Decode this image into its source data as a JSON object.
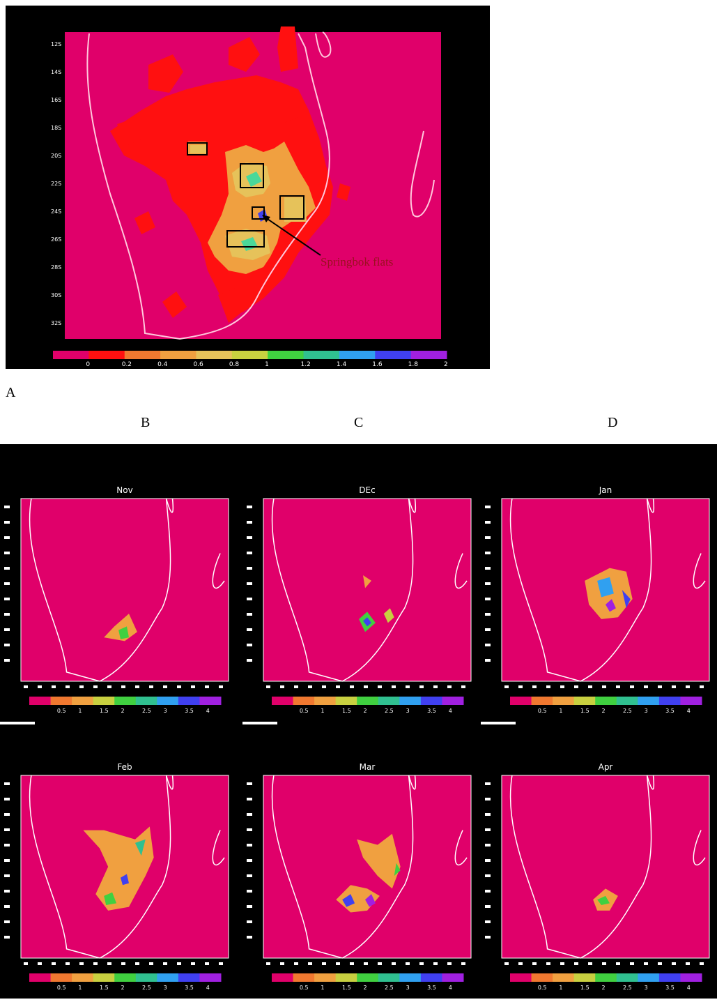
{
  "figure_labels": {
    "a": "A",
    "b": "B",
    "c": "C",
    "d": "D"
  },
  "panel_a": {
    "annotation": "Springbok flats",
    "colorbar_labels": [
      "0",
      "0.2",
      "0.4",
      "0.6",
      "0.8",
      "1",
      "1.2",
      "1.4",
      "1.6",
      "1.8",
      "2"
    ],
    "colors": {
      "background": "#e0006a",
      "level_1": "#ff1010",
      "level_2": "#f0a040",
      "level_3": "#e6c25a",
      "level_4": "#4ad89a",
      "box": "#000000",
      "coast": "#ffc8dc",
      "annotation": "#9b1020"
    }
  },
  "monthly_panels": [
    {
      "month": "Nov",
      "colorbar_labels": [
        "0.5",
        "1",
        "1.5",
        "2",
        "2.5",
        "3",
        "3.5",
        "4"
      ]
    },
    {
      "month": "DEc",
      "colorbar_labels": [
        "0.5",
        "1",
        "1.5",
        "2",
        "2.5",
        "3",
        "3.5",
        "4"
      ]
    },
    {
      "month": "Jan",
      "colorbar_labels": [
        "0.5",
        "1",
        "1.5",
        "2",
        "2.5",
        "3",
        "3.5",
        "4"
      ]
    },
    {
      "month": "Feb",
      "colorbar_labels": [
        "0.5",
        "1",
        "1.5",
        "2",
        "2.5",
        "3",
        "3.5",
        "4"
      ]
    },
    {
      "month": "Mar",
      "colorbar_labels": [
        "0.5",
        "1",
        "1.5",
        "2",
        "2.5",
        "3",
        "3.5",
        "4"
      ]
    },
    {
      "month": "Apr",
      "colorbar_labels": [
        "0.5",
        "1",
        "1.5",
        "2",
        "2.5",
        "3",
        "3.5",
        "4"
      ]
    }
  ],
  "colorbar_colors_monthly": [
    "#e0006a",
    "#f07830",
    "#f0a040",
    "#c8d040",
    "#40d040",
    "#30c090",
    "#30a0f0",
    "#4040f0",
    "#a020e0"
  ],
  "colorbar_colors_a": [
    "#e0006a",
    "#ff1010",
    "#f07830",
    "#f0a040",
    "#e6c25a",
    "#c8d040",
    "#40d040",
    "#30c090",
    "#30a0f0",
    "#4040f0",
    "#a020e0"
  ],
  "colors": {
    "plot_bg": "#e0006a",
    "coast": "#ffffff",
    "frame": "#000000"
  }
}
